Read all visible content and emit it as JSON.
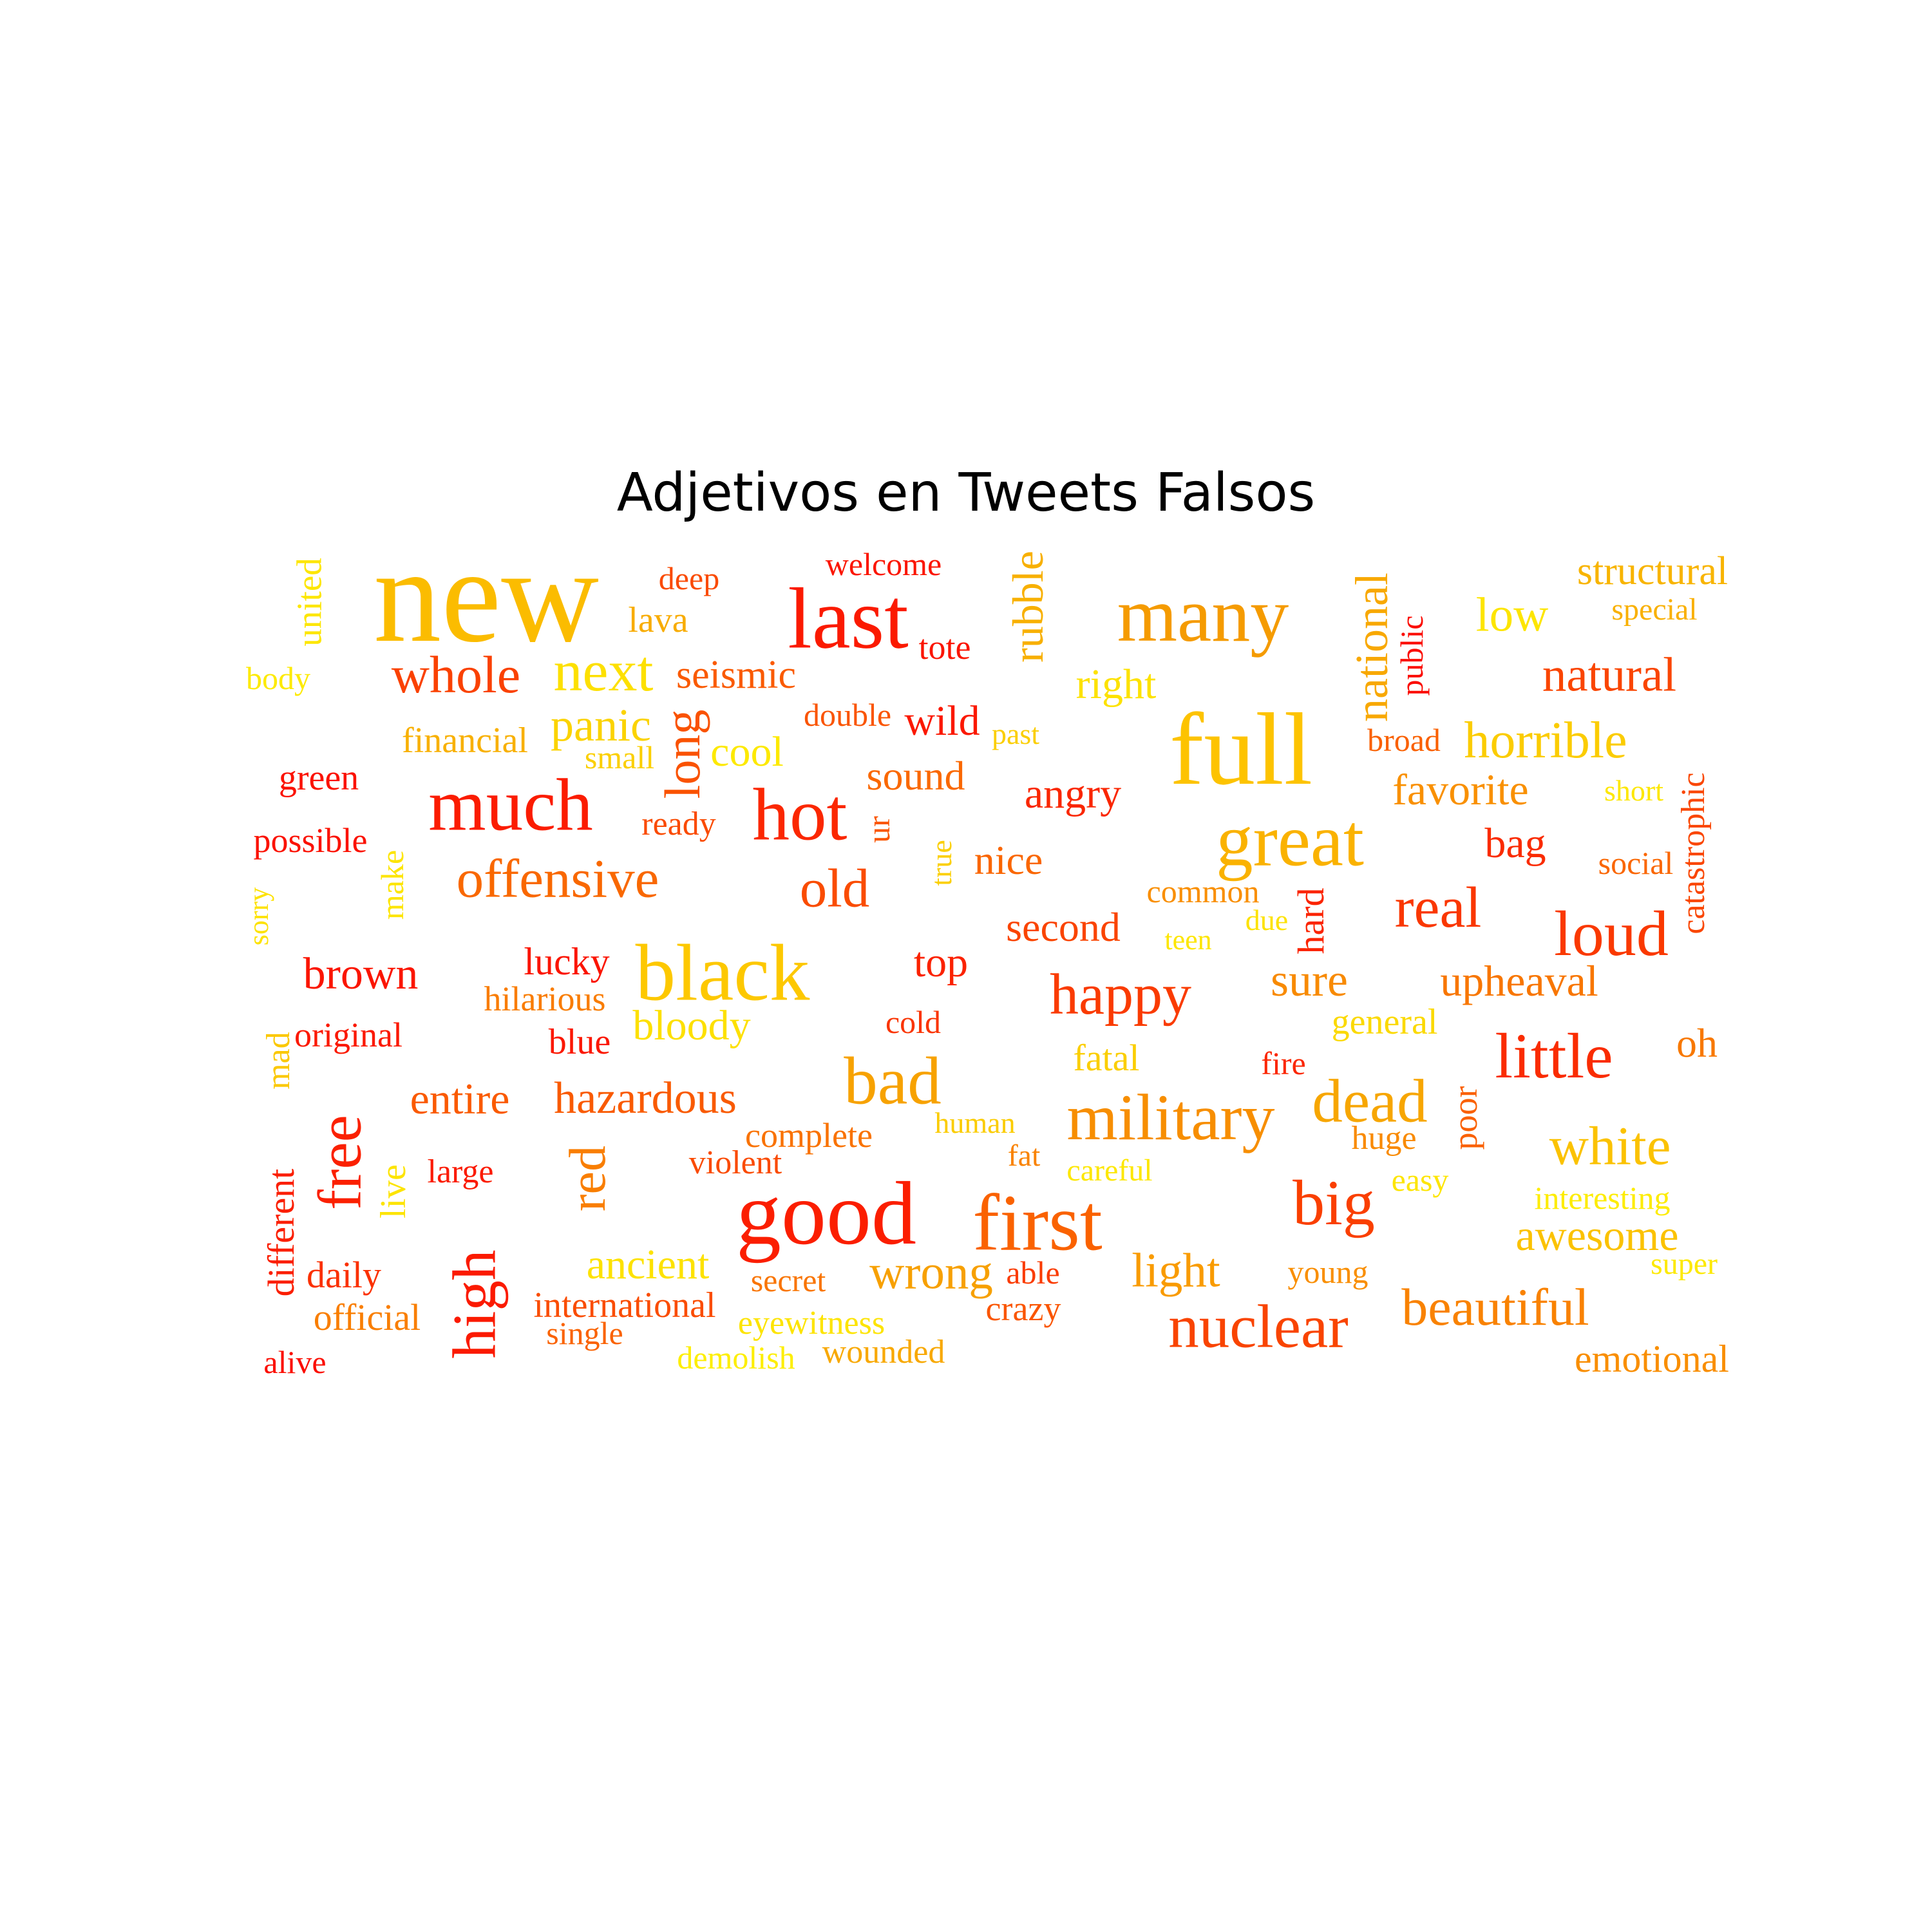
{
  "title": "Adjetivos en Tweets Falsos",
  "colors": {
    "background": "#ffffff",
    "title": "#000000",
    "palette": "autumn"
  },
  "words": [
    {
      "text": "new",
      "color": "#fbbc00"
    },
    {
      "text": "last",
      "color": "#fb1a00"
    },
    {
      "text": "many",
      "color": "#f59b00"
    },
    {
      "text": "full",
      "color": "#fdc300"
    },
    {
      "text": "good",
      "color": "#fb1e00"
    },
    {
      "text": "black",
      "color": "#fdc800"
    },
    {
      "text": "great",
      "color": "#fab200"
    },
    {
      "text": "first",
      "color": "#fa6200"
    },
    {
      "text": "much",
      "color": "#fb1c00"
    },
    {
      "text": "hot",
      "color": "#fb2700"
    },
    {
      "text": "military",
      "color": "#f78e00"
    },
    {
      "text": "nuclear",
      "color": "#f94400"
    },
    {
      "text": "next",
      "color": "#fde000"
    },
    {
      "text": "whole",
      "color": "#fa4100"
    },
    {
      "text": "offensive",
      "color": "#f96800"
    },
    {
      "text": "little",
      "color": "#fa2c00"
    },
    {
      "text": "bad",
      "color": "#f7a200"
    },
    {
      "text": "dead",
      "color": "#f7a600"
    },
    {
      "text": "loud",
      "color": "#fa3900"
    },
    {
      "text": "real",
      "color": "#fa3700"
    },
    {
      "text": "happy",
      "color": "#fa3b00"
    },
    {
      "text": "big",
      "color": "#fa3f00"
    },
    {
      "text": "white",
      "color": "#fbc200"
    },
    {
      "text": "beautiful",
      "color": "#f98200"
    },
    {
      "text": "old",
      "color": "#fa4c00"
    },
    {
      "text": "wrong",
      "color": "#f7a000"
    },
    {
      "text": "natural",
      "color": "#fa4500"
    },
    {
      "text": "horrible",
      "color": "#fbcc00"
    },
    {
      "text": "structural",
      "color": "#f8b400"
    },
    {
      "text": "low",
      "color": "#fde500"
    },
    {
      "text": "awesome",
      "color": "#fbc200"
    },
    {
      "text": "hazardous",
      "color": "#f95a00"
    },
    {
      "text": "entire",
      "color": "#fa5a00"
    },
    {
      "text": "brown",
      "color": "#fb1500"
    },
    {
      "text": "panic",
      "color": "#fbd300"
    },
    {
      "text": "seismic",
      "color": "#fa5a00"
    },
    {
      "text": "sure",
      "color": "#f88a00"
    },
    {
      "text": "upheaval",
      "color": "#f87600"
    },
    {
      "text": "light",
      "color": "#f99b00"
    },
    {
      "text": "ancient",
      "color": "#fde200"
    },
    {
      "text": "bloody",
      "color": "#fde000"
    },
    {
      "text": "angry",
      "color": "#fa2600"
    },
    {
      "text": "sound",
      "color": "#fa6800"
    },
    {
      "text": "favorite",
      "color": "#f99000"
    },
    {
      "text": "top",
      "color": "#fb2200"
    },
    {
      "text": "second",
      "color": "#fa4400"
    },
    {
      "text": "nice",
      "color": "#fa6600"
    },
    {
      "text": "lucky",
      "color": "#fb1400"
    },
    {
      "text": "wild",
      "color": "#fb1800"
    },
    {
      "text": "cool",
      "color": "#fde900"
    },
    {
      "text": "right",
      "color": "#fde200"
    },
    {
      "text": "bag",
      "color": "#fa2b00"
    },
    {
      "text": "oh",
      "color": "#f87800"
    },
    {
      "text": "financial",
      "color": "#f8b000"
    },
    {
      "text": "green",
      "color": "#fb1100"
    },
    {
      "text": "possible",
      "color": "#fb1100"
    },
    {
      "text": "original",
      "color": "#fb1800"
    },
    {
      "text": "daily",
      "color": "#fb3000"
    },
    {
      "text": "official",
      "color": "#f97e00"
    },
    {
      "text": "alive",
      "color": "#fb0d00"
    },
    {
      "text": "international",
      "color": "#fa4c00"
    },
    {
      "text": "single",
      "color": "#fa6200"
    },
    {
      "text": "eyewitness",
      "color": "#fde400"
    },
    {
      "text": "demolish",
      "color": "#fdee00"
    },
    {
      "text": "wounded",
      "color": "#f8a800"
    },
    {
      "text": "secret",
      "color": "#f97400"
    },
    {
      "text": "able",
      "color": "#fa3b00"
    },
    {
      "text": "crazy",
      "color": "#fa5500"
    },
    {
      "text": "complete",
      "color": "#f97200"
    },
    {
      "text": "violent",
      "color": "#fa4a00"
    },
    {
      "text": "human",
      "color": "#fbcc00"
    },
    {
      "text": "fat",
      "color": "#f98200"
    },
    {
      "text": "careful",
      "color": "#fde700"
    },
    {
      "text": "fatal",
      "color": "#fbce00"
    },
    {
      "text": "fire",
      "color": "#fb2600"
    },
    {
      "text": "general",
      "color": "#fbd900"
    },
    {
      "text": "huge",
      "color": "#f98a00"
    },
    {
      "text": "easy",
      "color": "#fde500"
    },
    {
      "text": "interesting",
      "color": "#fdec00"
    },
    {
      "text": "super",
      "color": "#fde900"
    },
    {
      "text": "young",
      "color": "#f98e00"
    },
    {
      "text": "emotional",
      "color": "#f98e00"
    },
    {
      "text": "common",
      "color": "#f98e00"
    },
    {
      "text": "teen",
      "color": "#fde600"
    },
    {
      "text": "due",
      "color": "#fde200"
    },
    {
      "text": "cold",
      "color": "#fa3400"
    },
    {
      "text": "blue",
      "color": "#fb1700"
    },
    {
      "text": "hilarious",
      "color": "#f97c00"
    },
    {
      "text": "large",
      "color": "#fb1a00"
    },
    {
      "text": "ready",
      "color": "#fa4a00"
    },
    {
      "text": "small",
      "color": "#fbcf00"
    },
    {
      "text": "double",
      "color": "#fa5400"
    },
    {
      "text": "past",
      "color": "#fbce00"
    },
    {
      "text": "broad",
      "color": "#fa6000"
    },
    {
      "text": "special",
      "color": "#f9b000"
    },
    {
      "text": "short",
      "color": "#fde700"
    },
    {
      "text": "social",
      "color": "#fa6600"
    },
    {
      "text": "deep",
      "color": "#fa4a00"
    },
    {
      "text": "lava",
      "color": "#f8ac00"
    },
    {
      "text": "welcome",
      "color": "#fb1500"
    },
    {
      "text": "tote",
      "color": "#fb1500"
    },
    {
      "text": "body",
      "color": "#fdea00"
    },
    {
      "text": "united",
      "color": "#fde600"
    },
    {
      "text": "rubble",
      "color": "#f8b000"
    },
    {
      "text": "national",
      "color": "#f8a800"
    },
    {
      "text": "public",
      "color": "#fb0a00"
    },
    {
      "text": "long",
      "color": "#fa5200"
    },
    {
      "text": "ur",
      "color": "#fa5600"
    },
    {
      "text": "true",
      "color": "#fbcf00"
    },
    {
      "text": "make",
      "color": "#fde500"
    },
    {
      "text": "sorry",
      "color": "#fde200"
    },
    {
      "text": "hard",
      "color": "#fb2400"
    },
    {
      "text": "catastrophic",
      "color": "#fa4600"
    },
    {
      "text": "mad",
      "color": "#fbc800"
    },
    {
      "text": "free",
      "color": "#fb2000"
    },
    {
      "text": "red",
      "color": "#f97e00"
    },
    {
      "text": "live",
      "color": "#fde400"
    },
    {
      "text": "different",
      "color": "#fb1e00"
    },
    {
      "text": "high",
      "color": "#fb1a00"
    },
    {
      "text": "poor",
      "color": "#fa6000"
    }
  ]
}
